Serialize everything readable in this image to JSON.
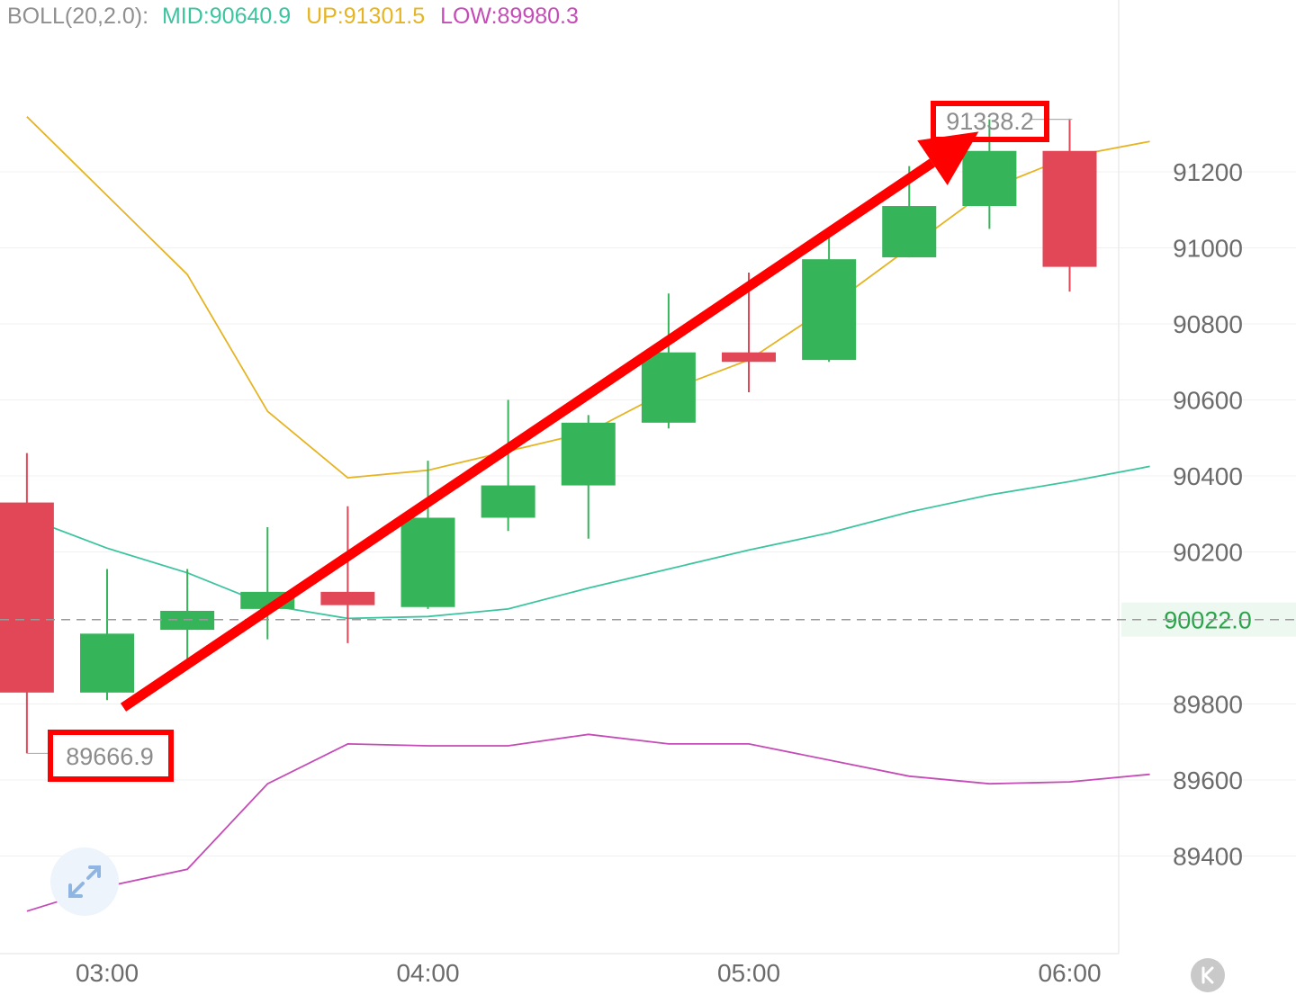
{
  "indicator": {
    "name": "BOLL(20,2.0):",
    "mid_label": "MID:90640.9",
    "up_label": "UP:91301.5",
    "low_label": "LOW:89980.3"
  },
  "colors": {
    "up_candle": "#36b45a",
    "down_candle": "#e24757",
    "mid_line": "#3cc4a0",
    "upper_line": "#e6b422",
    "lower_line": "#c54bb7",
    "annotation": "#ff0000",
    "last_price": "#2aa34a"
  },
  "icons": {
    "expand": "expand-arrows-icon",
    "scroll_latest": "k-icon"
  },
  "chart_data": {
    "type": "candlestick",
    "x_ticks": [
      "03:00",
      "04:00",
      "05:00",
      "06:00"
    ],
    "y_ticks": [
      "91200",
      "91000",
      "90800",
      "90600",
      "90400",
      "90200",
      "89800",
      "89600",
      "89400"
    ],
    "ylim": [
      89150,
      91600
    ],
    "interval_minutes": 15,
    "candles": [
      {
        "time": "02:45",
        "open": 90330,
        "high": 90460,
        "low": 89670,
        "close": 89830
      },
      {
        "time": "03:00",
        "open": 89830,
        "high": 90155,
        "low": 89810,
        "close": 89985
      },
      {
        "time": "03:15",
        "open": 89995,
        "high": 90155,
        "low": 89890,
        "close": 90045
      },
      {
        "time": "03:30",
        "open": 90050,
        "high": 90265,
        "low": 89970,
        "close": 90095
      },
      {
        "time": "03:45",
        "open": 90095,
        "high": 90320,
        "low": 89960,
        "close": 90060
      },
      {
        "time": "04:00",
        "open": 90055,
        "high": 90440,
        "low": 90050,
        "close": 90290
      },
      {
        "time": "04:15",
        "open": 90290,
        "high": 90600,
        "low": 90255,
        "close": 90375
      },
      {
        "time": "04:30",
        "open": 90375,
        "high": 90560,
        "low": 90235,
        "close": 90540
      },
      {
        "time": "04:45",
        "open": 90540,
        "high": 90880,
        "low": 90525,
        "close": 90725
      },
      {
        "time": "05:00",
        "open": 90725,
        "high": 90935,
        "low": 90620,
        "close": 90700
      },
      {
        "time": "05:15",
        "open": 90705,
        "high": 91045,
        "low": 90700,
        "close": 90970
      },
      {
        "time": "05:30",
        "open": 90975,
        "high": 91215,
        "low": 90975,
        "close": 91110
      },
      {
        "time": "05:45",
        "open": 91110,
        "high": 91338.2,
        "low": 91050,
        "close": 91255
      },
      {
        "time": "06:00",
        "open": 91255,
        "high": 91340,
        "low": 90885,
        "close": 90950
      }
    ],
    "boll_upper": [
      91345,
      null,
      90930,
      90570,
      90395,
      90415,
      90465,
      90515,
      90625,
      90705,
      90845,
      91000,
      91155,
      91240,
      91280
    ],
    "boll_mid": [
      90290,
      90210,
      90145,
      90060,
      90025,
      90030,
      90050,
      90105,
      90155,
      90205,
      90250,
      90305,
      90350,
      90385,
      90425
    ],
    "boll_lower": [
      89255,
      89320,
      89365,
      89590,
      89695,
      89690,
      89690,
      89720,
      89695,
      89695,
      null,
      89610,
      89590,
      89595,
      89615
    ],
    "boll_x_times": [
      "02:45",
      "03:00",
      "03:15",
      "03:30",
      "03:45",
      "04:00",
      "04:15",
      "04:30",
      "04:45",
      "05:00",
      "05:15",
      "05:30",
      "05:45",
      "06:00",
      "06:15"
    ],
    "last_price": "90022.0",
    "high_marker": "91338.2",
    "low_marker": "89666.9",
    "annotation": {
      "type": "trend-arrow",
      "from": {
        "time": "03:00",
        "price": 89810
      },
      "to": {
        "time": "05:45",
        "price": 91230
      }
    }
  }
}
